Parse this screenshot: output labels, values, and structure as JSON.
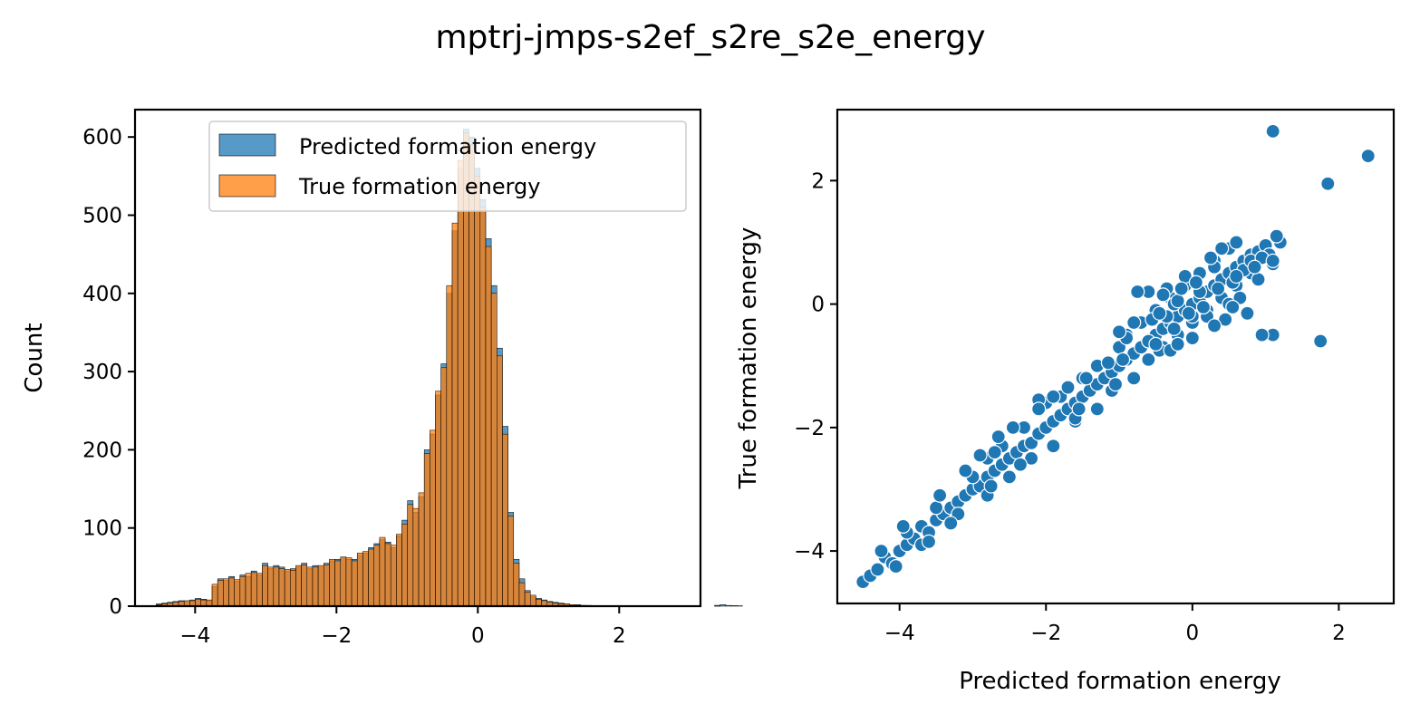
{
  "suptitle": "mptrj-jmps-s2ef_s2re_s2e_energy",
  "colors": {
    "predicted": "#1f77b4",
    "true": "#ff7f0e",
    "axis": "#000000",
    "legend_border": "#cccccc"
  },
  "chart_data": [
    {
      "type": "bar",
      "subtype": "histogram",
      "title": "",
      "xlabel": "",
      "ylabel": "Count",
      "xlim": [
        -4.85,
        3.15
      ],
      "ylim": [
        0,
        635
      ],
      "xticks": [
        -4,
        -2,
        0,
        2
      ],
      "yticks": [
        0,
        100,
        200,
        300,
        400,
        500,
        600
      ],
      "xtick_labels": [
        "−4",
        "−2",
        "0",
        "2"
      ],
      "ytick_labels": [
        "0",
        "100",
        "200",
        "300",
        "400",
        "500",
        "600"
      ],
      "bin_start": -4.55,
      "bin_width": 0.079,
      "legend": {
        "location": "upper right",
        "entries": [
          "Predicted formation energy",
          "True formation energy"
        ]
      },
      "series": [
        {
          "name": "Predicted formation energy",
          "color": "#1f77b4",
          "values": [
            3,
            4,
            5,
            6,
            7,
            6,
            8,
            10,
            9,
            7,
            25,
            35,
            33,
            38,
            32,
            40,
            38,
            45,
            40,
            55,
            48,
            52,
            50,
            45,
            48,
            50,
            55,
            48,
            52,
            50,
            55,
            58,
            60,
            62,
            60,
            60,
            65,
            68,
            75,
            80,
            85,
            82,
            75,
            90,
            110,
            135,
            120,
            140,
            200,
            220,
            270,
            310,
            400,
            480,
            560,
            610,
            600,
            560,
            520,
            470,
            410,
            330,
            230,
            120,
            60,
            35,
            20,
            12,
            10,
            8,
            6,
            5,
            4,
            3,
            2,
            2,
            1,
            1,
            0,
            0,
            0,
            0,
            0,
            0,
            0,
            0,
            0,
            0,
            0,
            0,
            0,
            0,
            0,
            0,
            0,
            0,
            0,
            0,
            0,
            0,
            1
          ],
          "extra_values": [
            2,
            1,
            0.8,
            0.5
          ]
        },
        {
          "name": "True formation energy",
          "color": "#ff7f0e",
          "values": [
            2,
            3,
            4,
            5,
            6,
            7,
            7,
            9,
            8,
            8,
            28,
            33,
            35,
            36,
            34,
            38,
            42,
            43,
            42,
            52,
            50,
            50,
            48,
            47,
            46,
            52,
            53,
            50,
            50,
            52,
            53,
            60,
            58,
            63,
            62,
            58,
            68,
            70,
            73,
            78,
            88,
            80,
            78,
            92,
            105,
            130,
            125,
            145,
            195,
            225,
            275,
            305,
            410,
            490,
            570,
            605,
            590,
            550,
            510,
            460,
            400,
            320,
            220,
            115,
            55,
            30,
            18,
            14,
            9,
            7,
            5,
            4,
            3,
            3,
            2,
            1,
            1,
            0,
            0,
            0,
            0,
            0,
            0,
            0,
            0,
            0,
            0,
            0,
            0,
            0,
            0,
            0,
            0,
            0,
            0,
            0,
            0,
            0,
            0,
            0,
            1
          ]
        }
      ]
    },
    {
      "type": "scatter",
      "title": "",
      "xlabel": "Predicted formation energy",
      "ylabel": "True formation energy",
      "xlim": [
        -4.85,
        2.75
      ],
      "ylim": [
        -4.85,
        3.15
      ],
      "xticks": [
        -4,
        -2,
        0,
        2
      ],
      "yticks": [
        -4,
        -2,
        0,
        2
      ],
      "xtick_labels": [
        "−4",
        "−2",
        "0",
        "2"
      ],
      "ytick_labels": [
        "−4",
        "−2",
        "0",
        "2"
      ],
      "color": "#1f77b4",
      "points": [
        [
          -4.5,
          -4.5
        ],
        [
          -4.4,
          -4.4
        ],
        [
          -4.3,
          -4.3
        ],
        [
          -4.2,
          -4.1
        ],
        [
          -4.1,
          -4.2
        ],
        [
          -4.0,
          -4.0
        ],
        [
          -3.9,
          -3.9
        ],
        [
          -3.8,
          -3.8
        ],
        [
          -3.7,
          -3.6
        ],
        [
          -3.6,
          -3.7
        ],
        [
          -3.5,
          -3.5
        ],
        [
          -3.4,
          -3.4
        ],
        [
          -3.3,
          -3.3
        ],
        [
          -3.2,
          -3.2
        ],
        [
          -3.1,
          -3.1
        ],
        [
          -3.0,
          -3.0
        ],
        [
          -2.9,
          -2.95
        ],
        [
          -2.8,
          -2.8
        ],
        [
          -2.7,
          -2.7
        ],
        [
          -2.6,
          -2.6
        ],
        [
          -2.5,
          -2.5
        ],
        [
          -2.4,
          -2.4
        ],
        [
          -2.3,
          -2.3
        ],
        [
          -2.2,
          -2.25
        ],
        [
          -2.1,
          -2.1
        ],
        [
          -2.0,
          -2.0
        ],
        [
          -1.9,
          -1.9
        ],
        [
          -1.8,
          -1.8
        ],
        [
          -1.7,
          -1.7
        ],
        [
          -1.6,
          -1.6
        ],
        [
          -1.5,
          -1.5
        ],
        [
          -1.4,
          -1.4
        ],
        [
          -1.3,
          -1.3
        ],
        [
          -1.2,
          -1.2
        ],
        [
          -1.1,
          -1.1
        ],
        [
          -1.0,
          -1.0
        ],
        [
          -0.9,
          -0.9
        ],
        [
          -0.8,
          -0.8
        ],
        [
          -0.7,
          -0.7
        ],
        [
          -0.6,
          -0.6
        ],
        [
          -0.5,
          -0.5
        ],
        [
          -0.4,
          -0.4
        ],
        [
          -0.3,
          -0.3
        ],
        [
          -0.2,
          -0.2
        ],
        [
          -0.1,
          -0.1
        ],
        [
          0.0,
          0.0
        ],
        [
          0.1,
          0.1
        ],
        [
          0.2,
          0.2
        ],
        [
          0.3,
          0.3
        ],
        [
          0.4,
          0.4
        ],
        [
          0.5,
          0.5
        ],
        [
          0.6,
          0.6
        ],
        [
          0.7,
          0.7
        ],
        [
          0.8,
          0.8
        ],
        [
          -3.9,
          -3.7
        ],
        [
          -3.5,
          -3.3
        ],
        [
          -3.0,
          -2.8
        ],
        [
          -2.8,
          -2.5
        ],
        [
          -2.6,
          -2.3
        ],
        [
          -2.3,
          -2.0
        ],
        [
          -2.0,
          -1.6
        ],
        [
          -1.8,
          -1.5
        ],
        [
          -1.5,
          -1.2
        ],
        [
          -1.3,
          -1.0
        ],
        [
          -1.0,
          -0.7
        ],
        [
          -0.9,
          -0.5
        ],
        [
          -0.7,
          -0.3
        ],
        [
          -0.5,
          -0.1
        ],
        [
          -0.3,
          0.1
        ],
        [
          -0.1,
          0.3
        ],
        [
          0.1,
          0.5
        ],
        [
          0.3,
          0.7
        ],
        [
          0.5,
          0.9
        ],
        [
          -3.7,
          -3.9
        ],
        [
          -3.2,
          -3.4
        ],
        [
          -2.8,
          -3.1
        ],
        [
          -2.5,
          -2.8
        ],
        [
          -2.2,
          -2.5
        ],
        [
          -1.9,
          -2.3
        ],
        [
          -1.6,
          -1.9
        ],
        [
          -1.3,
          -1.7
        ],
        [
          -1.1,
          -1.4
        ],
        [
          -0.8,
          -1.2
        ],
        [
          -0.6,
          -0.9
        ],
        [
          -0.4,
          -0.7
        ],
        [
          -0.2,
          -0.5
        ],
        [
          0.0,
          -0.3
        ],
        [
          0.2,
          -0.1
        ],
        [
          0.4,
          0.1
        ],
        [
          0.6,
          0.3
        ],
        [
          0.8,
          0.5
        ],
        [
          -2.1,
          -1.55
        ],
        [
          -2.65,
          -2.15
        ],
        [
          -1.3,
          -1.0
        ],
        [
          -1.9,
          -1.5
        ],
        [
          -2.45,
          -2.0
        ],
        [
          -1.6,
          -1.85
        ],
        [
          -0.6,
          -0.6
        ],
        [
          -0.95,
          -0.9
        ],
        [
          -0.45,
          -0.75
        ],
        [
          0.3,
          0.6
        ],
        [
          0.4,
          0.9
        ],
        [
          0.2,
          -0.2
        ],
        [
          0.1,
          0.2
        ],
        [
          0.45,
          -0.25
        ],
        [
          0.55,
          0.35
        ],
        [
          0.7,
          0.55
        ],
        [
          0.9,
          0.85
        ],
        [
          1.0,
          0.95
        ],
        [
          1.1,
          0.65
        ],
        [
          -0.1,
          0.45
        ],
        [
          -0.25,
          0.0
        ],
        [
          -0.35,
          -0.2
        ],
        [
          -0.55,
          -0.25
        ],
        [
          -0.9,
          -0.55
        ],
        [
          -0.6,
          -0.9
        ],
        [
          -0.3,
          -0.75
        ],
        [
          0.0,
          -0.55
        ],
        [
          -1.15,
          -0.95
        ],
        [
          -0.8,
          -0.3
        ],
        [
          -0.6,
          0.2
        ],
        [
          -0.2,
          0.05
        ],
        [
          0.05,
          0.35
        ],
        [
          0.6,
          1.0
        ],
        [
          0.8,
          0.7
        ],
        [
          0.35,
          0.25
        ],
        [
          0.0,
          -0.2
        ],
        [
          0.15,
          -0.05
        ],
        [
          -1.45,
          -1.2
        ],
        [
          -1.7,
          -1.35
        ],
        [
          -2.1,
          -1.7
        ],
        [
          -2.7,
          -2.4
        ],
        [
          -3.1,
          -2.7
        ],
        [
          -3.45,
          -3.1
        ],
        [
          -3.95,
          -3.6
        ],
        [
          -4.25,
          -4.0
        ],
        [
          -2.9,
          -2.45
        ],
        [
          -1.0,
          -0.45
        ],
        [
          -0.35,
          0.25
        ],
        [
          0.25,
          0.75
        ],
        [
          -1.55,
          -1.7
        ],
        [
          -1.05,
          -1.3
        ],
        [
          -0.5,
          -0.65
        ],
        [
          -2.35,
          -2.6
        ],
        [
          -3.3,
          -3.55
        ],
        [
          -4.05,
          -4.25
        ],
        [
          -3.6,
          -3.85
        ],
        [
          -2.75,
          -2.95
        ],
        [
          0.5,
          0.0
        ],
        [
          0.9,
          0.4
        ],
        [
          0.65,
          0.1
        ],
        [
          0.55,
          -0.05
        ],
        [
          0.75,
          -0.15
        ],
        [
          0.3,
          -0.35
        ],
        [
          -0.05,
          -0.15
        ],
        [
          -0.45,
          -0.15
        ],
        [
          1.2,
          1.0
        ],
        [
          1.15,
          1.1
        ],
        [
          1.05,
          0.8
        ],
        [
          0.95,
          0.75
        ],
        [
          0.85,
          0.6
        ],
        [
          0.6,
          0.45
        ],
        [
          1.1,
          0.7
        ],
        [
          -0.75,
          0.2
        ],
        [
          -0.4,
          0.15
        ],
        [
          -0.15,
          0.25
        ],
        [
          -0.25,
          -0.4
        ],
        [
          -0.2,
          -0.65
        ],
        [
          1.1,
          2.8
        ],
        [
          2.4,
          2.4
        ],
        [
          1.85,
          1.95
        ],
        [
          1.1,
          -0.5
        ],
        [
          0.95,
          -0.5
        ],
        [
          1.75,
          -0.6
        ]
      ]
    }
  ]
}
